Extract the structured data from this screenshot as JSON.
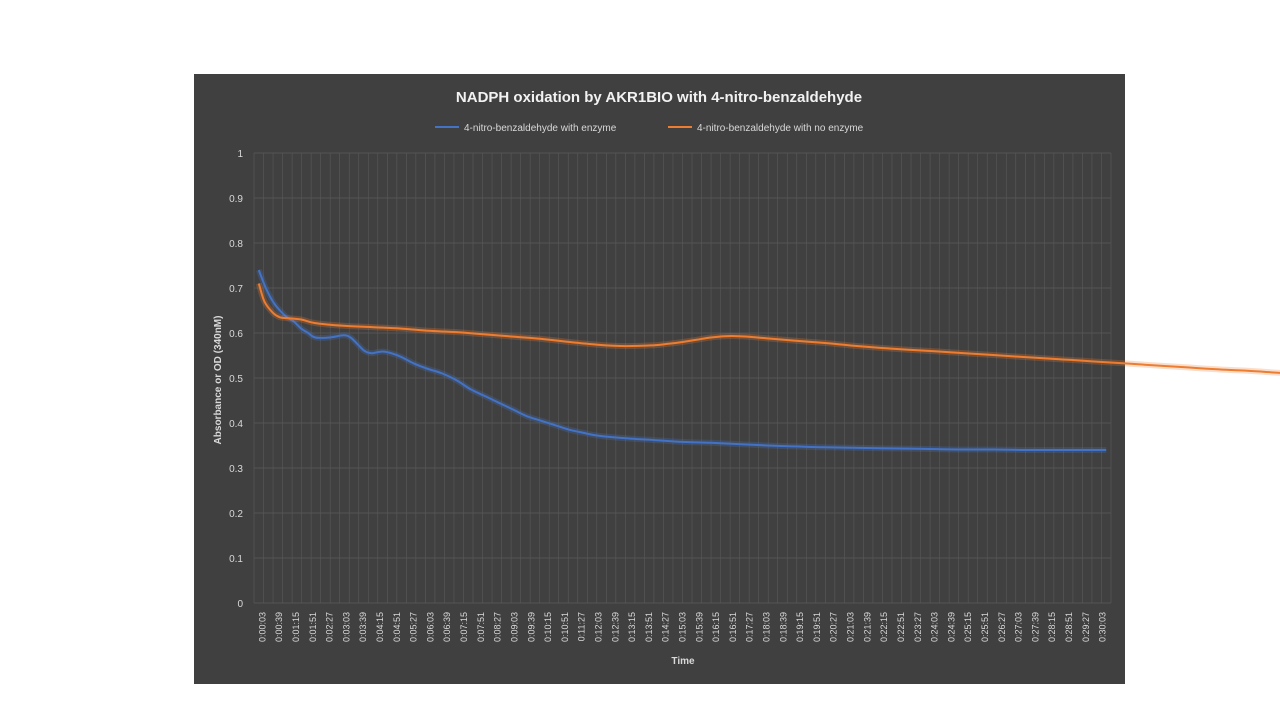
{
  "colors": {
    "panel": "#404040",
    "grid": "#5a5a5a",
    "enzyme": "#4472c4",
    "no_enzyme": "#ed7d31"
  },
  "chart_data": {
    "type": "line",
    "title": "NADPH oxidation by AKR1BIO with 4-nitro-benzaldehyde",
    "xlabel": "Time",
    "ylabel": "Absorbance  or OD  (340nM)",
    "ylim": [
      0,
      1
    ],
    "yticks": [
      "0",
      "0.1",
      "0.2",
      "0.3",
      "0.4",
      "0.5",
      "0.6",
      "0.7",
      "0.8",
      "0.9",
      "1"
    ],
    "legend_position": "top",
    "grid": true,
    "x_tick_labels": [
      "0:00:03",
      "0:00:39",
      "0:01:15",
      "0:01:51",
      "0:02:27",
      "0:03:03",
      "0:03:39",
      "0:04:15",
      "0:04:51",
      "0:05:27",
      "0:06:03",
      "0:06:39",
      "0:07:15",
      "0:07:51",
      "0:08:27",
      "0:09:03",
      "0:09:39",
      "0:10:15",
      "0:10:51",
      "0:11:27",
      "0:12:03",
      "0:12:39",
      "0:13:15",
      "0:13:51",
      "0:14:27",
      "0:15:03",
      "0:15:39",
      "0:16:15",
      "0:16:51",
      "0:17:27",
      "0:18:03",
      "0:18:39",
      "0:19:15",
      "0:19:51",
      "0:20:27",
      "0:21:03",
      "0:21:39",
      "0:22:15",
      "0:22:51",
      "0:23:27",
      "0:24:03",
      "0:24:39",
      "0:25:15",
      "0:25:51",
      "0:26:27",
      "0:27:03",
      "0:27:39",
      "0:28:15",
      "0:28:51",
      "0:29:27",
      "0:30:03"
    ],
    "series": [
      {
        "name": "4-nitro-benzaldehyde  with enzyme",
        "color": "#4472c4",
        "points": [
          [
            0.0,
            0.74
          ],
          [
            0.25,
            0.7
          ],
          [
            0.5,
            0.67
          ],
          [
            0.75,
            0.65
          ],
          [
            1.0,
            0.635
          ],
          [
            1.25,
            0.625
          ],
          [
            1.5,
            0.61
          ],
          [
            1.75,
            0.6
          ],
          [
            2.0,
            0.59
          ],
          [
            2.5,
            0.59
          ],
          [
            3.0,
            0.595
          ],
          [
            3.25,
            0.59
          ],
          [
            3.5,
            0.575
          ],
          [
            3.75,
            0.56
          ],
          [
            4.0,
            0.555
          ],
          [
            4.25,
            0.558
          ],
          [
            4.5,
            0.558
          ],
          [
            5.0,
            0.548
          ],
          [
            5.5,
            0.532
          ],
          [
            6.0,
            0.52
          ],
          [
            6.5,
            0.51
          ],
          [
            7.0,
            0.495
          ],
          [
            7.5,
            0.475
          ],
          [
            8.0,
            0.46
          ],
          [
            8.5,
            0.445
          ],
          [
            9.0,
            0.43
          ],
          [
            9.5,
            0.415
          ],
          [
            10.0,
            0.405
          ],
          [
            10.5,
            0.395
          ],
          [
            11.0,
            0.385
          ],
          [
            11.5,
            0.378
          ],
          [
            12.0,
            0.372
          ],
          [
            13.0,
            0.366
          ],
          [
            14.0,
            0.362
          ],
          [
            15.0,
            0.358
          ],
          [
            16.0,
            0.356
          ],
          [
            17.0,
            0.353
          ],
          [
            18.0,
            0.35
          ],
          [
            19.0,
            0.348
          ],
          [
            20.0,
            0.346
          ],
          [
            21.0,
            0.345
          ],
          [
            22.0,
            0.344
          ],
          [
            23.0,
            0.343
          ],
          [
            24.0,
            0.342
          ],
          [
            25.0,
            0.341
          ],
          [
            26.0,
            0.341
          ],
          [
            27.0,
            0.34
          ],
          [
            28.0,
            0.34
          ],
          [
            29.0,
            0.34
          ],
          [
            30.0,
            0.34
          ]
        ]
      },
      {
        "name": "4-nitro-benzaldehyde  with no enzyme",
        "color": "#ed7d31",
        "points": [
          [
            0.0,
            0.71
          ],
          [
            0.2,
            0.67
          ],
          [
            0.5,
            0.645
          ],
          [
            0.75,
            0.635
          ],
          [
            1.0,
            0.633
          ],
          [
            1.5,
            0.63
          ],
          [
            2.0,
            0.622
          ],
          [
            3.0,
            0.616
          ],
          [
            4.0,
            0.613
          ],
          [
            5.0,
            0.61
          ],
          [
            6.0,
            0.605
          ],
          [
            7.0,
            0.602
          ],
          [
            8.0,
            0.597
          ],
          [
            9.0,
            0.592
          ],
          [
            10.0,
            0.587
          ],
          [
            11.0,
            0.58
          ],
          [
            12.0,
            0.574
          ],
          [
            13.0,
            0.571
          ],
          [
            14.0,
            0.573
          ],
          [
            14.5,
            0.576
          ],
          [
            15.0,
            0.58
          ],
          [
            15.5,
            0.585
          ],
          [
            16.0,
            0.59
          ],
          [
            16.5,
            0.593
          ],
          [
            17.0,
            0.593
          ],
          [
            17.5,
            0.591
          ],
          [
            18.0,
            0.588
          ],
          [
            19.0,
            0.583
          ],
          [
            20.0,
            0.578
          ],
          [
            21.0,
            0.572
          ],
          [
            22.0,
            0.567
          ],
          [
            23.0,
            0.563
          ],
          [
            24.0,
            0.559
          ],
          [
            25.0,
            0.555
          ],
          [
            26.0,
            0.551
          ],
          [
            27.0,
            0.547
          ],
          [
            28.0,
            0.543
          ],
          [
            29.0,
            0.539
          ],
          [
            30.0,
            0.535
          ],
          [
            31.0,
            0.531
          ],
          [
            32.0,
            0.527
          ],
          [
            33.0,
            0.523
          ],
          [
            34.0,
            0.519
          ],
          [
            35.0,
            0.516
          ],
          [
            36.0,
            0.512
          ],
          [
            37.0,
            0.508
          ],
          [
            38.0,
            0.505
          ],
          [
            39.0,
            0.502
          ]
        ]
      }
    ]
  }
}
